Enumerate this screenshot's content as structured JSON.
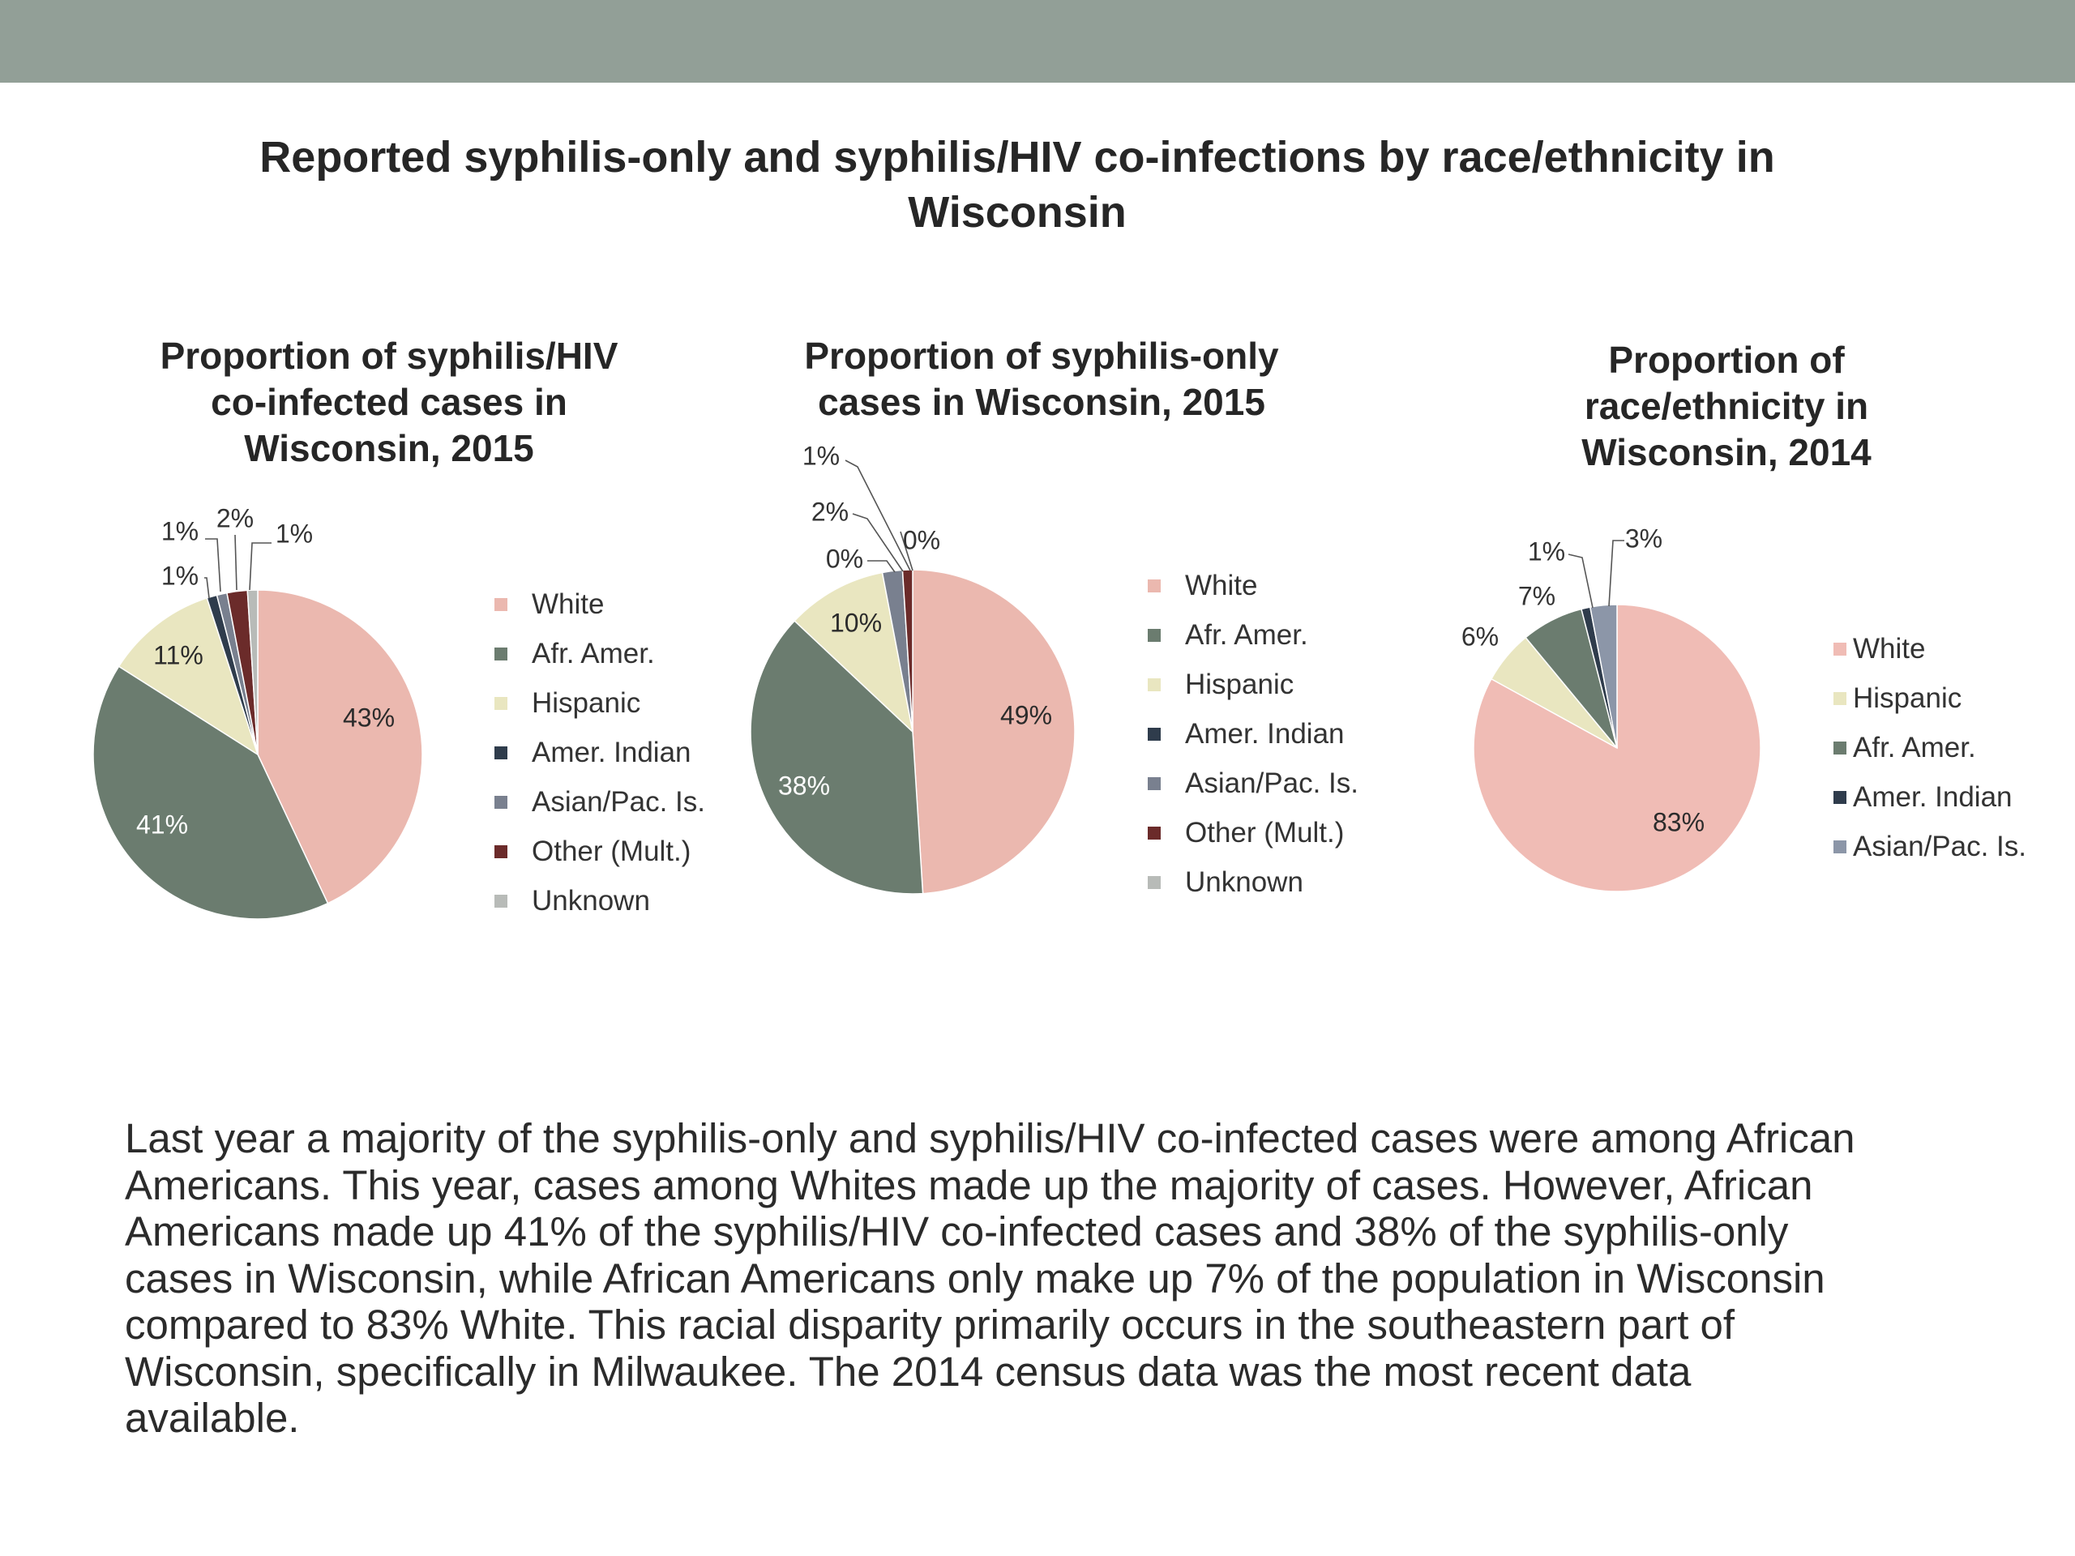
{
  "slide": {
    "header_color": "#929f97",
    "title_lines": [
      "Reported syphilis-only and syphilis/HIV co-infections by race/ethnicity in",
      "Wisconsin"
    ],
    "body_lines": [
      "Last year a majority of the syphilis-only and syphilis/HIV co-infected cases were among African",
      "Americans. This year, cases among Whites made up the majority of cases.  However, African",
      "Americans made up 41% of the syphilis/HIV co-infected cases and 38% of the syphilis-only",
      "cases in Wisconsin, while African Americans only make up 7% of the population in Wisconsin",
      "compared to 83% White. This racial disparity primarily occurs in the southeastern part of",
      "Wisconsin, specifically in Milwaukee. The 2014 census data was the most recent data",
      "available."
    ]
  },
  "chart_data": [
    {
      "type": "pie",
      "title_lines": [
        "Proportion of syphilis/HIV",
        "co-infected cases in",
        "Wisconsin, 2015"
      ],
      "legend_position": "right",
      "categories": [
        "White",
        "Afr. Amer.",
        "Hispanic",
        "Amer. Indian",
        "Asian/Pac. Is.",
        "Other (Mult.)",
        "Unknown"
      ],
      "values": [
        43,
        41,
        11,
        1,
        1,
        2,
        1
      ],
      "labels": [
        "43%",
        "41%",
        "11%",
        "1%",
        "1%",
        "2%",
        "1%"
      ],
      "colors": [
        "#ebb8af",
        "#6b7c6f",
        "#e9e6c0",
        "#2f3c4c",
        "#79808f",
        "#6b2b2a",
        "#b8bbb8"
      ]
    },
    {
      "type": "pie",
      "title_lines": [
        "Proportion of syphilis-only",
        "cases in Wisconsin, 2015"
      ],
      "legend_position": "right",
      "categories": [
        "White",
        "Afr. Amer.",
        "Hispanic",
        "Amer. Indian",
        "Asian/Pac. Is.",
        "Other (Mult.)",
        "Unknown"
      ],
      "values": [
        49,
        38,
        10,
        0,
        2,
        1,
        0
      ],
      "labels": [
        "49%",
        "38%",
        "10%",
        "0%",
        "2%",
        "1%",
        "0%"
      ],
      "colors": [
        "#ebb8af",
        "#6b7c6f",
        "#e9e6c0",
        "#2f3c4c",
        "#79808f",
        "#6b2b2a",
        "#b8bbb8"
      ]
    },
    {
      "type": "pie",
      "title_lines": [
        "Proportion of",
        "race/ethnicity in",
        "Wisconsin, 2014"
      ],
      "legend_position": "right",
      "categories": [
        "White",
        "Hispanic",
        "Afr. Amer.",
        "Amer. Indian",
        "Asian/Pac. Is."
      ],
      "values": [
        83,
        6,
        7,
        1,
        3
      ],
      "labels": [
        "83%",
        "6%",
        "7%",
        "1%",
        "3%"
      ],
      "colors": [
        "#f0bcb5",
        "#e9e6c0",
        "#6b7c6f",
        "#2f3c4c",
        "#8c96a8"
      ]
    }
  ]
}
